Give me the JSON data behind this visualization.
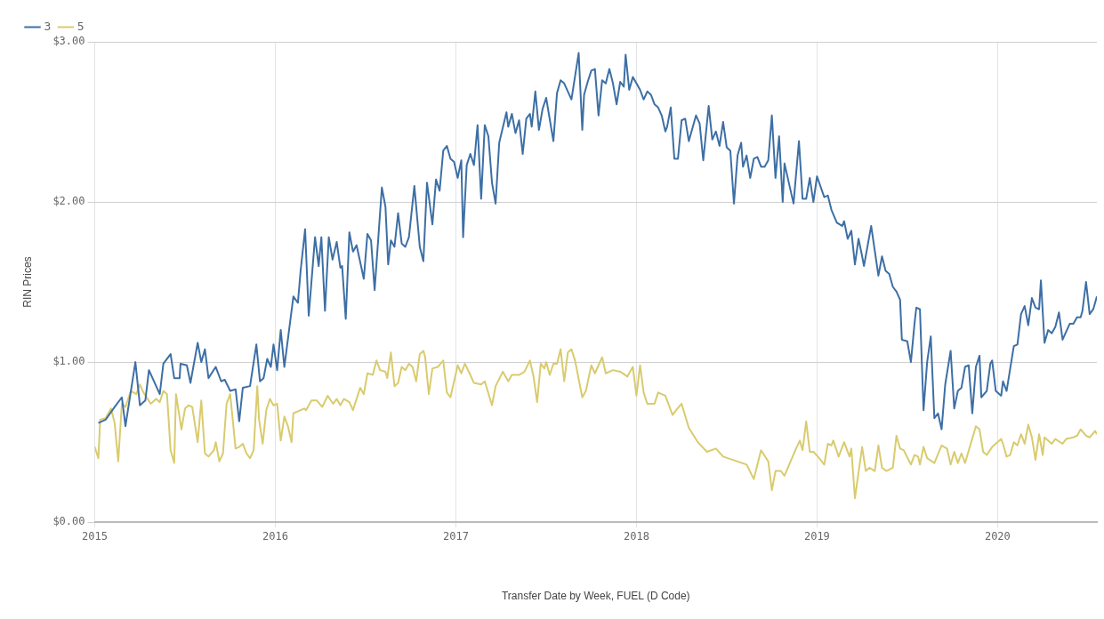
{
  "chart_data": {
    "type": "line",
    "xlabel": "Transfer Date by Week, FUEL (D Code)",
    "ylabel": "RIN Prices",
    "xlim": [
      2015,
      2020.55
    ],
    "xticks": [
      2015,
      2016,
      2017,
      2018,
      2019,
      2020
    ],
    "ylim": [
      0,
      3
    ],
    "yticks": [
      {
        "value": 0,
        "label": "$0.00"
      },
      {
        "value": 1,
        "label": "$1.00"
      },
      {
        "value": 2,
        "label": "$2.00"
      },
      {
        "value": 3,
        "label": "$3.00"
      }
    ],
    "grid": true,
    "legend": "top left",
    "marker": "none",
    "line_style": "solid",
    "series": [
      {
        "name": "3",
        "color": "#3d6fa5",
        "x": [
          2015.02,
          2015.06,
          2015.11,
          2015.15,
          2015.17,
          2015.225,
          2015.25,
          2015.28,
          2015.3,
          2015.36,
          2015.38,
          2015.42,
          2015.44,
          2015.47,
          2015.475,
          2015.51,
          2015.53,
          2015.57,
          2015.59,
          2015.61,
          2015.63,
          2015.67,
          2015.7,
          2015.72,
          2015.75,
          2015.78,
          2015.8,
          2015.82,
          2015.86,
          2015.895,
          2015.915,
          2015.935,
          2015.955,
          2015.975,
          2015.99,
          2016.01,
          2016.03,
          2016.05,
          2016.1,
          2016.125,
          2016.14,
          2016.165,
          2016.185,
          2016.22,
          2016.24,
          2016.255,
          2016.275,
          2016.296,
          2016.317,
          2016.34,
          2016.36,
          2016.37,
          2016.39,
          2016.41,
          2016.43,
          2016.45,
          2016.49,
          2016.51,
          2016.53,
          2016.55,
          2016.59,
          2016.61,
          2016.625,
          2016.64,
          2016.66,
          2016.68,
          2016.7,
          2016.72,
          2016.74,
          2016.77,
          2016.8,
          2016.82,
          2016.84,
          2016.87,
          2016.89,
          2016.91,
          2016.93,
          2016.95,
          2016.97,
          2016.99,
          2017.01,
          2017.03,
          2017.04,
          2017.06,
          2017.08,
          2017.1,
          2017.12,
          2017.14,
          2017.16,
          2017.18,
          2017.2,
          2017.22,
          2017.24,
          2017.28,
          2017.29,
          2017.31,
          2017.33,
          2017.35,
          2017.37,
          2017.39,
          2017.41,
          2017.42,
          2017.44,
          2017.46,
          2017.48,
          2017.5,
          2017.54,
          2017.56,
          2017.58,
          2017.6,
          2017.62,
          2017.64,
          2017.68,
          2017.7,
          2017.71,
          2017.73,
          2017.75,
          2017.77,
          2017.79,
          2017.81,
          2017.83,
          2017.85,
          2017.87,
          2017.89,
          2017.91,
          2017.93,
          2017.94,
          2017.96,
          2017.98,
          2018,
          2018.02,
          2018.04,
          2018.06,
          2018.08,
          2018.1,
          2018.12,
          2018.14,
          2018.16,
          2018.17,
          2018.19,
          2018.21,
          2018.23,
          2018.25,
          2018.27,
          2018.29,
          2018.33,
          2018.35,
          2018.37,
          2018.4,
          2018.42,
          2018.44,
          2018.46,
          2018.48,
          2018.5,
          2018.52,
          2018.54,
          2018.56,
          2018.58,
          2018.59,
          2018.61,
          2018.63,
          2018.65,
          2018.67,
          2018.69,
          2018.71,
          2018.73,
          2018.75,
          2018.77,
          2018.79,
          2018.81,
          2018.82,
          2018.87,
          2018.9,
          2018.92,
          2018.94,
          2018.96,
          2018.98,
          2019,
          2019.04,
          2019.06,
          2019.08,
          2019.11,
          2019.14,
          2019.15,
          2019.17,
          2019.19,
          2019.21,
          2019.23,
          2019.25,
          2019.26,
          2019.3,
          2019.34,
          2019.36,
          2019.38,
          2019.4,
          2019.42,
          2019.44,
          2019.46,
          2019.47,
          2019.5,
          2019.52,
          2019.54,
          2019.55,
          2019.57,
          2019.59,
          2019.61,
          2019.63,
          2019.65,
          2019.67,
          2019.69,
          2019.71,
          2019.74,
          2019.76,
          2019.78,
          2019.8,
          2019.82,
          2019.84,
          2019.86,
          2019.88,
          2019.9,
          2019.91,
          2019.94,
          2019.96,
          2019.97,
          2019.99,
          2020.02,
          2020.03,
          2020.05,
          2020.09,
          2020.11,
          2020.13,
          2020.15,
          2020.17,
          2020.19,
          2020.21,
          2020.23,
          2020.24,
          2020.26,
          2020.28,
          2020.3,
          2020.32,
          2020.34,
          2020.36,
          2020.38,
          2020.4,
          2020.42,
          2020.44,
          2020.46,
          2020.47,
          2020.49,
          2020.51,
          2020.53,
          2020.55
        ],
        "values": [
          0.62,
          0.64,
          0.72,
          0.78,
          0.6,
          1.0,
          0.73,
          0.76,
          0.95,
          0.8,
          0.99,
          1.05,
          0.9,
          0.9,
          0.99,
          0.98,
          0.87,
          1.12,
          1.0,
          1.08,
          0.9,
          0.97,
          0.88,
          0.89,
          0.82,
          0.83,
          0.63,
          0.84,
          0.85,
          1.11,
          0.88,
          0.9,
          1.02,
          0.97,
          1.11,
          0.95,
          1.2,
          0.97,
          1.41,
          1.37,
          1.57,
          1.83,
          1.29,
          1.78,
          1.6,
          1.78,
          1.32,
          1.78,
          1.64,
          1.75,
          1.59,
          1.6,
          1.27,
          1.81,
          1.69,
          1.73,
          1.52,
          1.8,
          1.76,
          1.45,
          2.09,
          1.97,
          1.61,
          1.76,
          1.72,
          1.93,
          1.74,
          1.72,
          1.78,
          2.1,
          1.72,
          1.63,
          2.12,
          1.86,
          2.14,
          2.07,
          2.32,
          2.35,
          2.27,
          2.25,
          2.15,
          2.26,
          1.78,
          2.23,
          2.3,
          2.23,
          2.48,
          2.02,
          2.48,
          2.41,
          2.12,
          1.99,
          2.37,
          2.56,
          2.47,
          2.55,
          2.43,
          2.51,
          2.3,
          2.52,
          2.55,
          2.47,
          2.69,
          2.45,
          2.58,
          2.65,
          2.38,
          2.68,
          2.76,
          2.74,
          2.69,
          2.64,
          2.93,
          2.45,
          2.67,
          2.75,
          2.82,
          2.83,
          2.54,
          2.76,
          2.74,
          2.83,
          2.74,
          2.61,
          2.75,
          2.72,
          2.92,
          2.7,
          2.78,
          2.74,
          2.7,
          2.64,
          2.69,
          2.67,
          2.61,
          2.59,
          2.54,
          2.44,
          2.47,
          2.59,
          2.27,
          2.27,
          2.51,
          2.52,
          2.38,
          2.54,
          2.49,
          2.26,
          2.6,
          2.39,
          2.44,
          2.35,
          2.5,
          2.34,
          2.32,
          1.99,
          2.29,
          2.37,
          2.22,
          2.29,
          2.15,
          2.27,
          2.28,
          2.22,
          2.22,
          2.26,
          2.54,
          2.15,
          2.41,
          2.0,
          2.24,
          1.99,
          2.38,
          2.02,
          2.02,
          2.15,
          2.0,
          2.16,
          2.03,
          2.04,
          1.95,
          1.87,
          1.85,
          1.88,
          1.77,
          1.82,
          1.61,
          1.77,
          1.66,
          1.6,
          1.85,
          1.54,
          1.66,
          1.57,
          1.55,
          1.47,
          1.44,
          1.39,
          1.14,
          1.13,
          1.0,
          1.24,
          1.34,
          1.33,
          0.7,
          1.0,
          1.16,
          0.65,
          0.68,
          0.58,
          0.86,
          1.07,
          0.71,
          0.82,
          0.84,
          0.97,
          0.98,
          0.68,
          0.97,
          1.04,
          0.78,
          0.82,
          0.99,
          1.01,
          0.82,
          0.79,
          0.88,
          0.82,
          1.1,
          1.11,
          1.3,
          1.35,
          1.23,
          1.4,
          1.34,
          1.33,
          1.51,
          1.12,
          1.2,
          1.18,
          1.22,
          1.31,
          1.14,
          1.19,
          1.24,
          1.24,
          1.28,
          1.28,
          1.32,
          1.5,
          1.3,
          1.33,
          1.41
        ]
      },
      {
        "name": "5",
        "color": "#d9cb6e",
        "x": [
          2015,
          2015.02,
          2015.03,
          2015.06,
          2015.09,
          2015.11,
          2015.13,
          2015.15,
          2015.17,
          2015.2,
          2015.23,
          2015.25,
          2015.27,
          2015.31,
          2015.34,
          2015.36,
          2015.38,
          2015.4,
          2015.42,
          2015.44,
          2015.45,
          2015.48,
          2015.5,
          2015.52,
          2015.54,
          2015.57,
          2015.59,
          2015.61,
          2015.63,
          2015.66,
          2015.67,
          2015.69,
          2015.71,
          2015.73,
          2015.75,
          2015.78,
          2015.8,
          2015.82,
          2015.84,
          2015.86,
          2015.88,
          2015.9,
          2015.91,
          2015.93,
          2015.95,
          2015.97,
          2015.99,
          2016.01,
          2016.03,
          2016.05,
          2016.07,
          2016.09,
          2016.1,
          2016.14,
          2016.16,
          2016.17,
          2016.2,
          2016.23,
          2016.26,
          2016.29,
          2016.32,
          2016.34,
          2016.36,
          2016.38,
          2016.41,
          2016.43,
          2016.47,
          2016.49,
          2016.51,
          2016.54,
          2016.56,
          2016.58,
          2016.61,
          2016.62,
          2016.64,
          2016.66,
          2016.68,
          2016.7,
          2016.72,
          2016.74,
          2016.76,
          2016.78,
          2016.8,
          2016.82,
          2016.83,
          2016.85,
          2016.87,
          2016.9,
          2016.93,
          2016.95,
          2016.97,
          2017.01,
          2017.03,
          2017.05,
          2017.08,
          2017.1,
          2017.14,
          2017.16,
          2017.2,
          2017.22,
          2017.26,
          2017.29,
          2017.31,
          2017.35,
          2017.38,
          2017.41,
          2017.43,
          2017.45,
          2017.47,
          2017.49,
          2017.5,
          2017.52,
          2017.54,
          2017.56,
          2017.58,
          2017.6,
          2017.62,
          2017.64,
          2017.66,
          2017.7,
          2017.72,
          2017.75,
          2017.77,
          2017.81,
          2017.83,
          2017.87,
          2017.91,
          2017.95,
          2017.98,
          2018,
          2018.02,
          2018.04,
          2018.06,
          2018.1,
          2018.12,
          2018.16,
          2018.2,
          2018.22,
          2018.25,
          2018.29,
          2018.34,
          2018.39,
          2018.44,
          2018.48,
          2018.585,
          2018.61,
          2018.65,
          2018.69,
          2018.73,
          2018.75,
          2018.77,
          2018.8,
          2018.82,
          2018.88,
          2018.905,
          2018.92,
          2018.94,
          2018.96,
          2018.98,
          2019.005,
          2019.04,
          2019.06,
          2019.08,
          2019.09,
          2019.12,
          2019.15,
          2019.18,
          2019.19,
          2019.21,
          2019.25,
          2019.27,
          2019.29,
          2019.32,
          2019.34,
          2019.36,
          2019.385,
          2019.42,
          2019.44,
          2019.46,
          2019.48,
          2019.52,
          2019.54,
          2019.56,
          2019.57,
          2019.59,
          2019.61,
          2019.65,
          2019.69,
          2019.72,
          2019.74,
          2019.76,
          2019.78,
          2019.8,
          2019.82,
          2019.88,
          2019.9,
          2019.92,
          2019.94,
          2019.97,
          2020.02,
          2020.03,
          2020.05,
          2020.07,
          2020.09,
          2020.11,
          2020.13,
          2020.15,
          2020.17,
          2020.19,
          2020.21,
          2020.23,
          2020.25,
          2020.26,
          2020.3,
          2020.32,
          2020.36,
          2020.38,
          2020.42,
          2020.44,
          2020.46,
          2020.49,
          2020.51,
          2020.54,
          2020.55
        ],
        "values": [
          0.47,
          0.4,
          0.64,
          0.65,
          0.71,
          0.62,
          0.38,
          0.74,
          0.72,
          0.82,
          0.8,
          0.86,
          0.81,
          0.74,
          0.77,
          0.75,
          0.82,
          0.8,
          0.45,
          0.37,
          0.8,
          0.58,
          0.71,
          0.73,
          0.72,
          0.5,
          0.76,
          0.43,
          0.41,
          0.45,
          0.5,
          0.38,
          0.43,
          0.74,
          0.8,
          0.46,
          0.47,
          0.49,
          0.43,
          0.4,
          0.45,
          0.85,
          0.64,
          0.49,
          0.7,
          0.77,
          0.73,
          0.74,
          0.51,
          0.66,
          0.6,
          0.5,
          0.68,
          0.7,
          0.71,
          0.7,
          0.76,
          0.76,
          0.72,
          0.79,
          0.74,
          0.77,
          0.73,
          0.77,
          0.75,
          0.7,
          0.84,
          0.8,
          0.93,
          0.92,
          1.01,
          0.95,
          0.94,
          0.9,
          1.06,
          0.85,
          0.87,
          0.97,
          0.95,
          0.99,
          0.97,
          0.88,
          1.05,
          1.07,
          1.03,
          0.8,
          0.96,
          0.97,
          1.01,
          0.81,
          0.78,
          0.98,
          0.93,
          0.99,
          0.92,
          0.87,
          0.86,
          0.88,
          0.73,
          0.85,
          0.94,
          0.88,
          0.92,
          0.92,
          0.94,
          1.01,
          0.91,
          0.75,
          0.99,
          0.96,
          1.0,
          0.92,
          0.99,
          0.99,
          1.08,
          0.88,
          1.06,
          1.08,
          1.01,
          0.78,
          0.82,
          0.98,
          0.93,
          1.03,
          0.93,
          0.95,
          0.94,
          0.91,
          0.97,
          0.79,
          0.98,
          0.81,
          0.74,
          0.74,
          0.81,
          0.79,
          0.67,
          0.7,
          0.74,
          0.59,
          0.5,
          0.44,
          0.46,
          0.41,
          0.37,
          0.36,
          0.27,
          0.45,
          0.38,
          0.2,
          0.32,
          0.32,
          0.29,
          0.45,
          0.51,
          0.45,
          0.63,
          0.44,
          0.44,
          0.41,
          0.36,
          0.49,
          0.48,
          0.51,
          0.41,
          0.5,
          0.41,
          0.46,
          0.15,
          0.47,
          0.32,
          0.34,
          0.32,
          0.48,
          0.34,
          0.32,
          0.34,
          0.54,
          0.46,
          0.45,
          0.36,
          0.42,
          0.41,
          0.36,
          0.47,
          0.4,
          0.37,
          0.48,
          0.46,
          0.36,
          0.44,
          0.37,
          0.43,
          0.37,
          0.6,
          0.58,
          0.44,
          0.42,
          0.47,
          0.52,
          0.49,
          0.41,
          0.42,
          0.5,
          0.48,
          0.55,
          0.49,
          0.61,
          0.53,
          0.39,
          0.55,
          0.42,
          0.53,
          0.49,
          0.52,
          0.49,
          0.52,
          0.53,
          0.54,
          0.58,
          0.54,
          0.53,
          0.57,
          0.55
        ]
      }
    ]
  }
}
